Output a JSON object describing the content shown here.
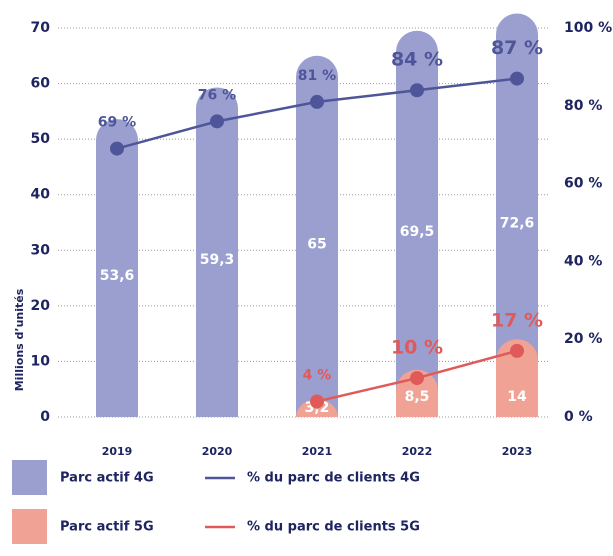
{
  "chart_data": {
    "type": "bar",
    "categories": [
      "2019",
      "2020",
      "2021",
      "2022",
      "2023"
    ],
    "y_label": "Millions d’unités",
    "ylim": [
      0,
      70
    ],
    "yticks": [
      0,
      10,
      20,
      30,
      40,
      50,
      60,
      70
    ],
    "y2lim": [
      0,
      100
    ],
    "y2ticks": [
      {
        "value": 0,
        "label": "0 %"
      },
      {
        "value": 20,
        "label": "20 %"
      },
      {
        "value": 40,
        "label": "40 %"
      },
      {
        "value": 60,
        "label": "60 %"
      },
      {
        "value": 80,
        "label": "80 %"
      },
      {
        "value": 100,
        "label": "100 %"
      }
    ],
    "grid": true,
    "series": [
      {
        "name": "Parc actif 4G",
        "type": "bar",
        "color": "#9a9fd0",
        "values": [
          53.6,
          59.3,
          65,
          69.5,
          72.6
        ],
        "value_labels": [
          "53,6",
          "59,3",
          "65",
          "69,5",
          "72,6"
        ]
      },
      {
        "name": "% du parc de clients 4G",
        "type": "line",
        "axis": "y2",
        "color": "#4f5599",
        "values": [
          69,
          76,
          81,
          84,
          87
        ],
        "value_labels": [
          "69 %",
          "76 %",
          "81 %",
          "84 %",
          "87 %"
        ]
      },
      {
        "name": "Parc actif 5G",
        "type": "bar",
        "color": "#f0a394",
        "values": [
          null,
          null,
          3.2,
          8.5,
          14
        ],
        "value_labels": [
          null,
          null,
          "3,2",
          "8,5",
          "14"
        ]
      },
      {
        "name": "% du parc de clients 5G",
        "type": "line",
        "axis": "y2",
        "color": "#e05a5a",
        "values": [
          null,
          null,
          4,
          10,
          17
        ],
        "value_labels": [
          null,
          null,
          "4 %",
          "10 %",
          "17 %"
        ]
      }
    ]
  }
}
